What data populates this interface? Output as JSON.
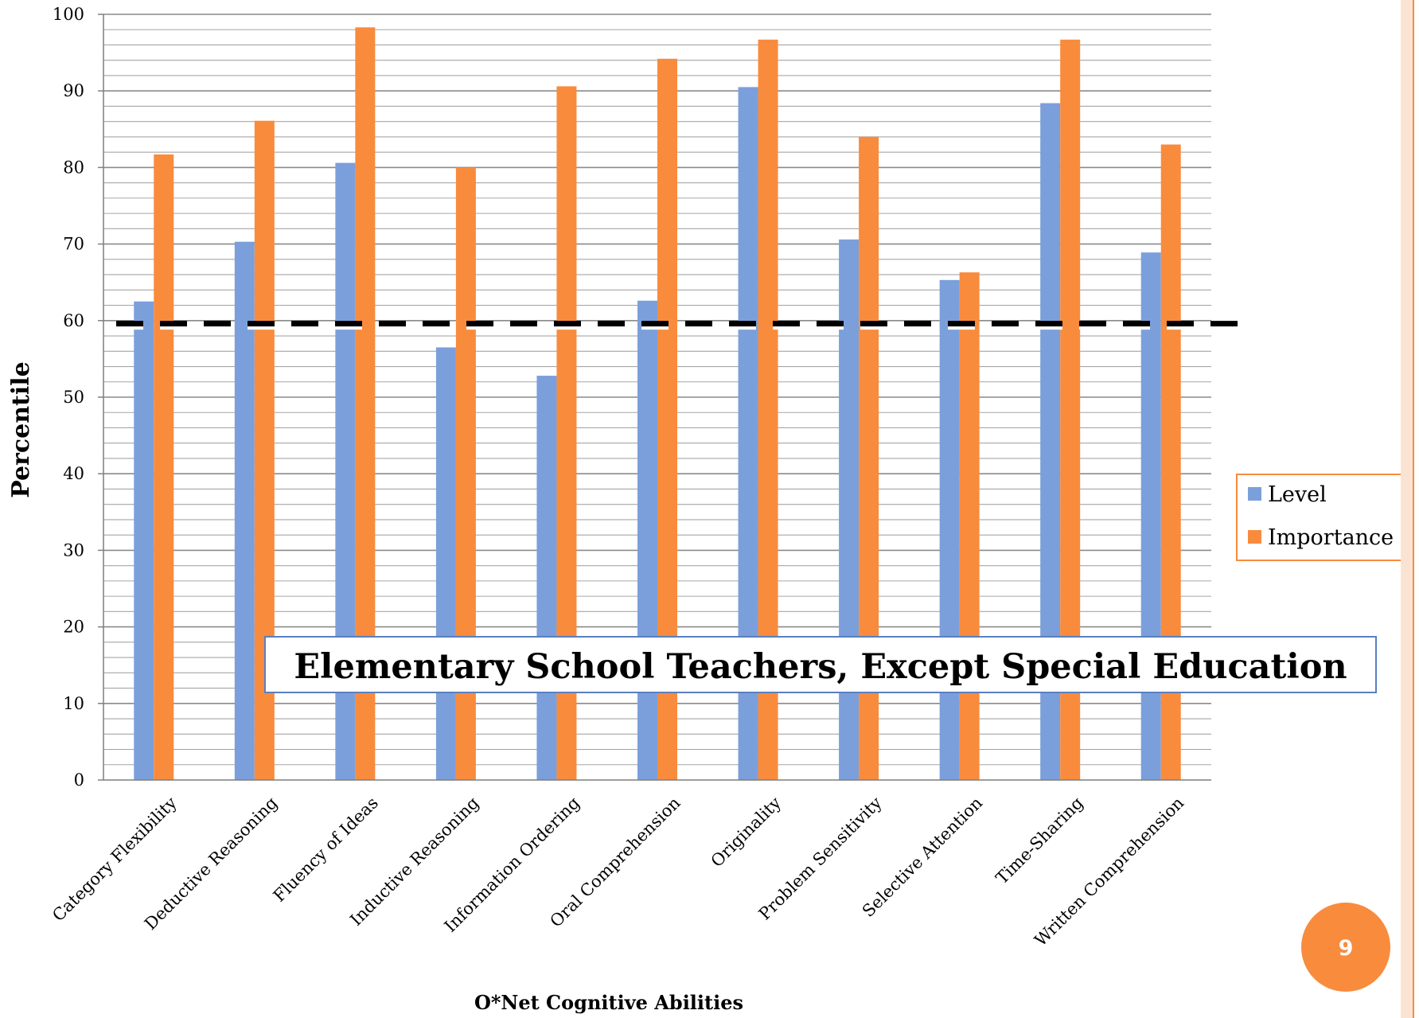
{
  "chart_data": {
    "type": "bar",
    "title": "",
    "xlabel": "O*Net Cognitive Abilities",
    "ylabel": "Percentile",
    "ylim": [
      0,
      100
    ],
    "yticks": [
      0,
      10,
      20,
      30,
      40,
      50,
      60,
      70,
      80,
      90,
      100
    ],
    "grid": true,
    "legend_position": "right",
    "categories": [
      "Category Flexibility",
      "Deductive Reasoning",
      "Fluency of Ideas",
      "Inductive Reasoning",
      "Information Ordering",
      "Oral Comprehension",
      "Originality",
      "Problem Sensitivity",
      "Selective Attention",
      "Time-Sharing",
      "Written Comprehension"
    ],
    "series": [
      {
        "name": "Level",
        "color": "#7b9fdb",
        "values": [
          62.5,
          70.3,
          80.6,
          56.5,
          52.8,
          62.6,
          90.5,
          70.6,
          65.3,
          88.4,
          68.9
        ]
      },
      {
        "name": "Importance",
        "color": "#f98b3d",
        "values": [
          81.7,
          86.1,
          98.3,
          80.0,
          90.6,
          94.2,
          96.7,
          84.0,
          66.3,
          96.7,
          83.0
        ]
      }
    ],
    "reference_line": {
      "value": 59.6,
      "style": "dashed",
      "color": "#000000"
    },
    "annotation": "Elementary School Teachers, Except Special Education"
  },
  "page": {
    "number": "9",
    "accent_color": "#f98b3d"
  }
}
